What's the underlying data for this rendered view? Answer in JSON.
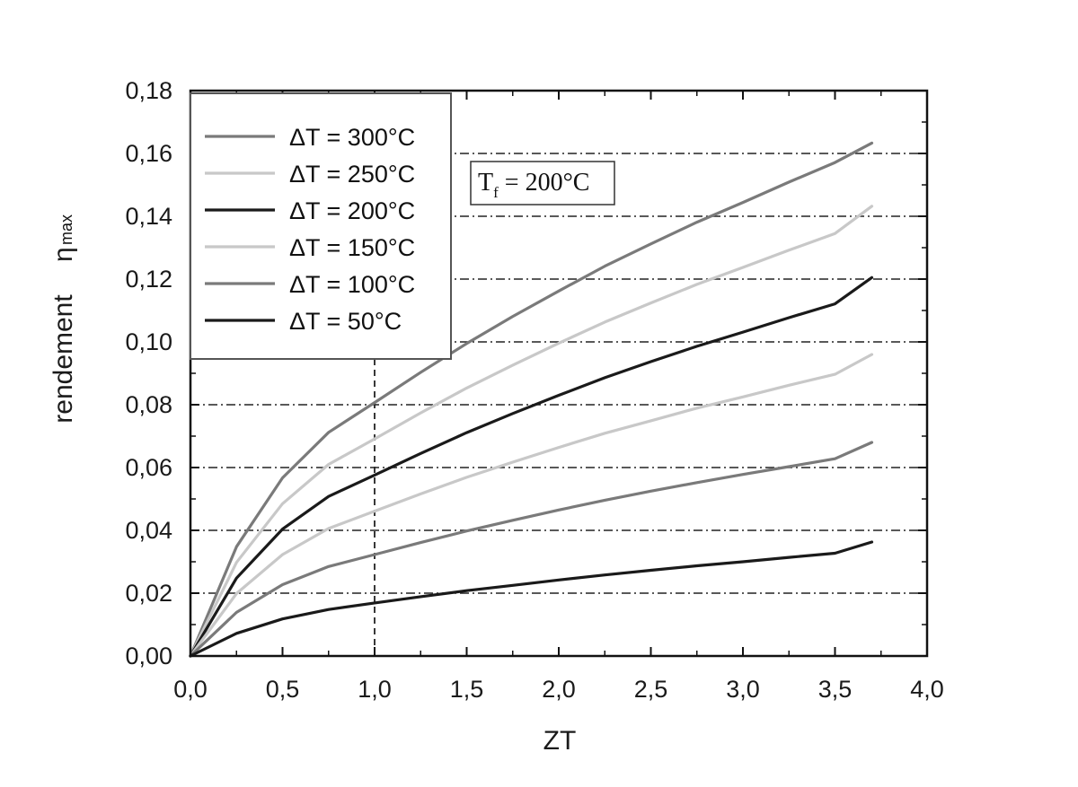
{
  "chart_data": {
    "type": "line",
    "xlabel": "ZT",
    "ylabel": "rendement",
    "ylabel_symbol": "η",
    "ylabel_subscript": "max",
    "xlim": [
      0,
      4.0
    ],
    "ylim": [
      0,
      0.18
    ],
    "x_ticks": [
      "0,0",
      "0,5",
      "1,0",
      "1,5",
      "2,0",
      "2,5",
      "3,0",
      "3,5",
      "4,0"
    ],
    "y_ticks": [
      "0,00",
      "0,02",
      "0,04",
      "0,06",
      "0,08",
      "0,10",
      "0,12",
      "0,14",
      "0,16",
      "0,18"
    ],
    "grid": "horizontal dash-dot",
    "reference_line": {
      "x": 1.0,
      "style": "dashed"
    },
    "annotation": {
      "symbol": "T",
      "subscript": "f",
      "text": " = 200°C"
    },
    "legend_position": "top-left",
    "x": [
      0,
      0.25,
      0.5,
      0.75,
      1.0,
      1.25,
      1.5,
      1.75,
      2.0,
      2.25,
      2.5,
      2.75,
      3.0,
      3.25,
      3.5,
      3.7
    ],
    "series": [
      {
        "name": "ΔT = 300°C",
        "color": "#7a7a7a",
        "values": [
          0,
          0.0348,
          0.0567,
          0.0712,
          0.0807,
          0.0903,
          0.0995,
          0.1081,
          0.1162,
          0.1241,
          0.1312,
          0.1381,
          0.1444,
          0.1509,
          0.1571,
          0.1633
        ]
      },
      {
        "name": "ΔT = 250°C",
        "color": "#c8c8c8",
        "values": [
          0,
          0.0298,
          0.0485,
          0.061,
          0.0691,
          0.0774,
          0.0853,
          0.0926,
          0.0996,
          0.1063,
          0.1124,
          0.1183,
          0.1237,
          0.1292,
          0.1345,
          0.1432
        ]
      },
      {
        "name": "ΔT = 200°C",
        "color": "#1a1a1a",
        "values": [
          0,
          0.0248,
          0.0404,
          0.0508,
          0.0576,
          0.0645,
          0.0711,
          0.0772,
          0.083,
          0.0886,
          0.0937,
          0.0986,
          0.1031,
          0.1077,
          0.1121,
          0.1205
        ]
      },
      {
        "name": "ΔT = 150°C",
        "color": "#c8c8c8",
        "values": [
          0,
          0.0199,
          0.0323,
          0.0406,
          0.0461,
          0.0516,
          0.0569,
          0.0617,
          0.0664,
          0.0709,
          0.0749,
          0.0789,
          0.0825,
          0.0862,
          0.0897,
          0.096
        ]
      },
      {
        "name": "ΔT = 100°C",
        "color": "#7a7a7a",
        "values": [
          0,
          0.0139,
          0.0227,
          0.0285,
          0.0323,
          0.0361,
          0.0398,
          0.0432,
          0.0465,
          0.0496,
          0.0525,
          0.0552,
          0.0578,
          0.0603,
          0.0628,
          0.068
        ]
      },
      {
        "name": "ΔT = 50°C",
        "color": "#1a1a1a",
        "values": [
          0,
          0.0072,
          0.0118,
          0.0148,
          0.0169,
          0.0189,
          0.0208,
          0.0225,
          0.0242,
          0.0258,
          0.0273,
          0.0287,
          0.03,
          0.0314,
          0.0327,
          0.0363
        ]
      }
    ]
  }
}
